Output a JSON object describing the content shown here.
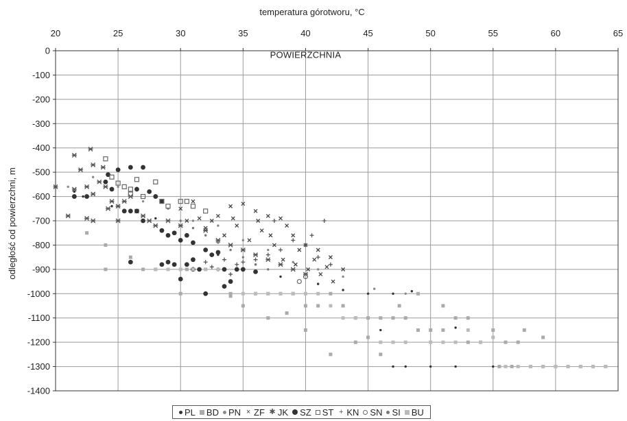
{
  "chart_data": {
    "type": "scatter",
    "title": "",
    "xlabel": "temperatura górotworu, °C",
    "ylabel": "odległość od powierzchni, m",
    "x_axis_position": "top",
    "xlim": [
      20,
      65
    ],
    "ylim": [
      -1400,
      0
    ],
    "x_ticks": [
      20,
      25,
      30,
      35,
      40,
      45,
      50,
      55,
      60,
      65
    ],
    "y_ticks": [
      0,
      -100,
      -200,
      -300,
      -400,
      -500,
      -600,
      -700,
      -800,
      -900,
      -1000,
      -1100,
      -1200,
      -1300,
      -1400
    ],
    "grid": true,
    "legend_position": "bottom",
    "annotations": [
      {
        "text": "POWIERZCHNIA",
        "x": 40,
        "y": -30
      }
    ],
    "series": [
      {
        "name": "PL",
        "marker": "small-dot",
        "color": "#333333",
        "points": [
          [
            21.5,
            -580
          ],
          [
            22.2,
            -600
          ],
          [
            24.5,
            -640
          ],
          [
            28,
            -690
          ],
          [
            30.5,
            -760
          ],
          [
            33,
            -840
          ],
          [
            36,
            -880
          ],
          [
            38,
            -930
          ],
          [
            41,
            -960
          ],
          [
            43,
            -985
          ],
          [
            45,
            -1000
          ],
          [
            47,
            -1000
          ],
          [
            48.5,
            -990
          ],
          [
            46,
            -1150
          ],
          [
            49,
            -1150
          ],
          [
            52,
            -1140
          ],
          [
            48,
            -1300
          ],
          [
            50,
            -1300
          ],
          [
            47,
            -1300
          ],
          [
            52,
            -1300
          ],
          [
            55,
            -1300
          ]
        ]
      },
      {
        "name": "BD",
        "marker": "square",
        "color": "#aaaaaa",
        "points": [
          [
            22.5,
            -750
          ],
          [
            24,
            -800
          ],
          [
            24,
            -900
          ],
          [
            26,
            -850
          ],
          [
            27,
            -900
          ],
          [
            28,
            -900
          ],
          [
            30,
            -1000
          ],
          [
            30.5,
            -900
          ],
          [
            31,
            -900
          ],
          [
            32,
            -900
          ],
          [
            34,
            -1000
          ],
          [
            35,
            -1050
          ],
          [
            36,
            -1000
          ],
          [
            37,
            -1000
          ],
          [
            38,
            -1000
          ],
          [
            39,
            -1000
          ],
          [
            40,
            -1050
          ],
          [
            41,
            -1050
          ],
          [
            42,
            -1000
          ],
          [
            43,
            -1050
          ],
          [
            44,
            -1100
          ],
          [
            45,
            -1100
          ],
          [
            46,
            -1100
          ],
          [
            47,
            -1100
          ],
          [
            48,
            -1100
          ],
          [
            49,
            -1150
          ],
          [
            50,
            -1150
          ],
          [
            51,
            -1150
          ],
          [
            52,
            -1100
          ],
          [
            53,
            -1200
          ],
          [
            54,
            -1200
          ],
          [
            55,
            -1150
          ],
          [
            56,
            -1200
          ],
          [
            57,
            -1200
          ],
          [
            58,
            -1300
          ],
          [
            59,
            -1300
          ],
          [
            60,
            -1300
          ],
          [
            61,
            -1300
          ],
          [
            62,
            -1300
          ],
          [
            63,
            -1300
          ],
          [
            64,
            -1300
          ],
          [
            38.5,
            -1080
          ],
          [
            40,
            -1150
          ],
          [
            42,
            -1250
          ],
          [
            44,
            -1200
          ],
          [
            46,
            -1250
          ],
          [
            57.5,
            -1150
          ],
          [
            59,
            -1180
          ],
          [
            55.5,
            -1300
          ],
          [
            56.5,
            -1300
          ],
          [
            34,
            -1010
          ],
          [
            37,
            -1100
          ],
          [
            47.5,
            -1050
          ],
          [
            49,
            -1000
          ],
          [
            51,
            -1050
          ],
          [
            53,
            -1100
          ],
          [
            45,
            -1180
          ]
        ]
      },
      {
        "name": "PN",
        "marker": "small-dot",
        "color": "#888888",
        "points": [
          [
            21,
            -560
          ],
          [
            23,
            -520
          ],
          [
            25,
            -560
          ],
          [
            27,
            -620
          ],
          [
            29,
            -650
          ],
          [
            31,
            -700
          ],
          [
            33,
            -720
          ],
          [
            35,
            -780
          ],
          [
            37,
            -820
          ],
          [
            39,
            -870
          ],
          [
            41,
            -900
          ],
          [
            43,
            -930
          ],
          [
            45.5,
            -980
          ],
          [
            48,
            -1000
          ]
        ]
      },
      {
        "name": "ZF",
        "marker": "x",
        "color": "#444444",
        "points": [
          [
            30.5,
            -700
          ],
          [
            31.5,
            -690
          ],
          [
            32,
            -730
          ],
          [
            33,
            -680
          ],
          [
            34,
            -640
          ],
          [
            35,
            -630
          ],
          [
            36,
            -660
          ],
          [
            37,
            -680
          ],
          [
            38,
            -690
          ],
          [
            38.5,
            -720
          ],
          [
            39,
            -760
          ],
          [
            40,
            -800
          ],
          [
            41,
            -820
          ],
          [
            42,
            -850
          ],
          [
            43,
            -900
          ],
          [
            30,
            -650
          ],
          [
            31,
            -620
          ],
          [
            32.5,
            -700
          ],
          [
            33.5,
            -760
          ],
          [
            34.5,
            -720
          ],
          [
            35.5,
            -780
          ],
          [
            36.5,
            -740
          ],
          [
            37.5,
            -800
          ],
          [
            38.2,
            -860
          ],
          [
            39.2,
            -880
          ],
          [
            40.2,
            -900
          ],
          [
            41.2,
            -920
          ],
          [
            42.2,
            -950
          ],
          [
            34.2,
            -690
          ],
          [
            36.2,
            -700
          ],
          [
            37.2,
            -760
          ],
          [
            39.5,
            -820
          ],
          [
            40.7,
            -860
          ],
          [
            41.7,
            -890
          ]
        ]
      },
      {
        "name": "JK",
        "marker": "asterisk",
        "color": "#555555",
        "points": [
          [
            20,
            -560
          ],
          [
            21.5,
            -570
          ],
          [
            22,
            -490
          ],
          [
            22.5,
            -560
          ],
          [
            23,
            -470
          ],
          [
            23.5,
            -540
          ],
          [
            24,
            -560
          ],
          [
            24.5,
            -620
          ],
          [
            25,
            -640
          ],
          [
            25.5,
            -620
          ],
          [
            26,
            -600
          ],
          [
            26.5,
            -660
          ],
          [
            27,
            -680
          ],
          [
            27.5,
            -700
          ],
          [
            28,
            -720
          ],
          [
            29,
            -700
          ],
          [
            30,
            -720
          ],
          [
            21.5,
            -430
          ],
          [
            22.8,
            -405
          ],
          [
            23,
            -590
          ],
          [
            23.8,
            -480
          ],
          [
            24.2,
            -650
          ],
          [
            21,
            -680
          ],
          [
            22.5,
            -690
          ],
          [
            23,
            -700
          ],
          [
            25,
            -700
          ],
          [
            32,
            -740
          ],
          [
            33,
            -780
          ],
          [
            34,
            -800
          ],
          [
            35,
            -820
          ],
          [
            36,
            -840
          ],
          [
            37,
            -860
          ],
          [
            38,
            -880
          ],
          [
            39,
            -900
          ],
          [
            40,
            -920
          ]
        ]
      },
      {
        "name": "SZ",
        "marker": "big-dot",
        "color": "#333333",
        "points": [
          [
            21.5,
            -600
          ],
          [
            22.5,
            -600
          ],
          [
            24,
            -540
          ],
          [
            24.2,
            -510
          ],
          [
            24.5,
            -570
          ],
          [
            25,
            -490
          ],
          [
            26,
            -480
          ],
          [
            27,
            -480
          ],
          [
            26.5,
            -570
          ],
          [
            27.5,
            -580
          ],
          [
            28,
            -600
          ],
          [
            28.5,
            -620
          ],
          [
            26,
            -660
          ],
          [
            27,
            -700
          ],
          [
            25.5,
            -660
          ],
          [
            26.5,
            -660
          ],
          [
            28.5,
            -740
          ],
          [
            29,
            -760
          ],
          [
            30,
            -780
          ],
          [
            29,
            -870
          ],
          [
            29.5,
            -880
          ],
          [
            30.5,
            -880
          ],
          [
            31,
            -860
          ],
          [
            30.5,
            -760
          ],
          [
            31,
            -790
          ],
          [
            32,
            -820
          ],
          [
            33,
            -830
          ],
          [
            33.5,
            -900
          ],
          [
            34,
            -950
          ],
          [
            34.5,
            -900
          ],
          [
            32,
            -1000
          ],
          [
            33.5,
            -970
          ],
          [
            31.5,
            -900
          ],
          [
            28.5,
            -880
          ],
          [
            30,
            -940
          ],
          [
            31,
            -900
          ],
          [
            32.5,
            -840
          ],
          [
            35,
            -900
          ],
          [
            36,
            -910
          ],
          [
            29.5,
            -750
          ],
          [
            26,
            -870
          ]
        ]
      },
      {
        "name": "ST",
        "marker": "hollow-square",
        "color": "#666666",
        "points": [
          [
            24,
            -445
          ],
          [
            24.5,
            -520
          ],
          [
            25,
            -545
          ],
          [
            25.5,
            -560
          ],
          [
            26,
            -590
          ],
          [
            26.5,
            -530
          ],
          [
            27,
            -600
          ],
          [
            28,
            -540
          ],
          [
            28.5,
            -620
          ],
          [
            29,
            -640
          ],
          [
            30,
            -620
          ],
          [
            30.5,
            -620
          ],
          [
            31,
            -640
          ],
          [
            32,
            -660
          ],
          [
            26,
            -570
          ]
        ]
      },
      {
        "name": "KN",
        "marker": "plus",
        "color": "#555555",
        "points": [
          [
            32,
            -870
          ],
          [
            32.5,
            -890
          ],
          [
            33,
            -900
          ],
          [
            34,
            -920
          ],
          [
            34.5,
            -880
          ],
          [
            35,
            -870
          ],
          [
            36,
            -860
          ],
          [
            37,
            -840
          ],
          [
            38,
            -820
          ],
          [
            39,
            -780
          ],
          [
            40,
            -800
          ],
          [
            40.5,
            -760
          ],
          [
            41,
            -850
          ],
          [
            42,
            -880
          ],
          [
            41.5,
            -700
          ],
          [
            37.5,
            -700
          ],
          [
            33.5,
            -860
          ]
        ]
      },
      {
        "name": "SN",
        "marker": "hollow-circle",
        "color": "#666666",
        "points": [
          [
            39.5,
            -950
          ],
          [
            40,
            -930
          ]
        ]
      },
      {
        "name": "SI",
        "marker": "small-dot",
        "color": "#777777",
        "points": [
          [
            30,
            -700
          ],
          [
            31,
            -730
          ],
          [
            32,
            -760
          ],
          [
            33,
            -790
          ],
          [
            34,
            -820
          ],
          [
            35,
            -850
          ],
          [
            36,
            -880
          ],
          [
            37,
            -900
          ]
        ]
      },
      {
        "name": "BU",
        "marker": "square",
        "color": "#bbbbbb",
        "points": [
          [
            28,
            -900
          ],
          [
            29,
            -900
          ],
          [
            30,
            -900
          ],
          [
            31,
            -900
          ],
          [
            32,
            -900
          ],
          [
            33,
            -900
          ],
          [
            35,
            -1000
          ],
          [
            36,
            -1000
          ],
          [
            37,
            -1000
          ],
          [
            38,
            -1000
          ],
          [
            39,
            -1000
          ],
          [
            40,
            -1000
          ],
          [
            41,
            -1000
          ],
          [
            42,
            -1050
          ],
          [
            43,
            -1100
          ],
          [
            44,
            -1100
          ],
          [
            46,
            -1200
          ],
          [
            47,
            -1200
          ],
          [
            48,
            -1200
          ],
          [
            50,
            -1200
          ],
          [
            51,
            -1200
          ],
          [
            52,
            -1200
          ],
          [
            54,
            -1200
          ],
          [
            56,
            -1300
          ],
          [
            57,
            -1300
          ],
          [
            58,
            -1300
          ],
          [
            59,
            -1300
          ],
          [
            60,
            -1300
          ],
          [
            61,
            -1300
          ],
          [
            62,
            -1300
          ],
          [
            63,
            -1300
          ],
          [
            64,
            -1300
          ],
          [
            53,
            -1150
          ],
          [
            55,
            -1180
          ]
        ]
      }
    ]
  }
}
